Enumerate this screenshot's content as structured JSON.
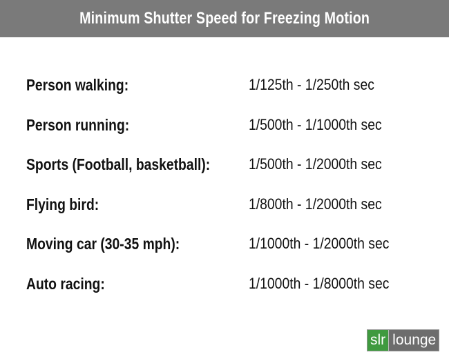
{
  "title": "Minimum Shutter Speed for Freezing Motion",
  "rows": [
    {
      "subject": "Person walking:",
      "speed": "1/125th - 1/250th sec"
    },
    {
      "subject": "Person running:",
      "speed": "1/500th - 1/1000th sec"
    },
    {
      "subject": "Sports (Football, basketball):",
      "speed": "1/500th - 1/2000th sec"
    },
    {
      "subject": "Flying bird:",
      "speed": "1/800th - 1/2000th sec"
    },
    {
      "subject": "Moving car (30-35 mph):",
      "speed": "1/1000th - 1/2000th sec"
    },
    {
      "subject": "Auto racing:",
      "speed": "1/1000th - 1/8000th sec"
    }
  ],
  "logo": {
    "left_text": "slr",
    "right_text": "lounge"
  },
  "colors": {
    "title_bar": "#7a7a7a",
    "logo_green": "#3f9a3f",
    "logo_gray": "#6d6d6d"
  }
}
